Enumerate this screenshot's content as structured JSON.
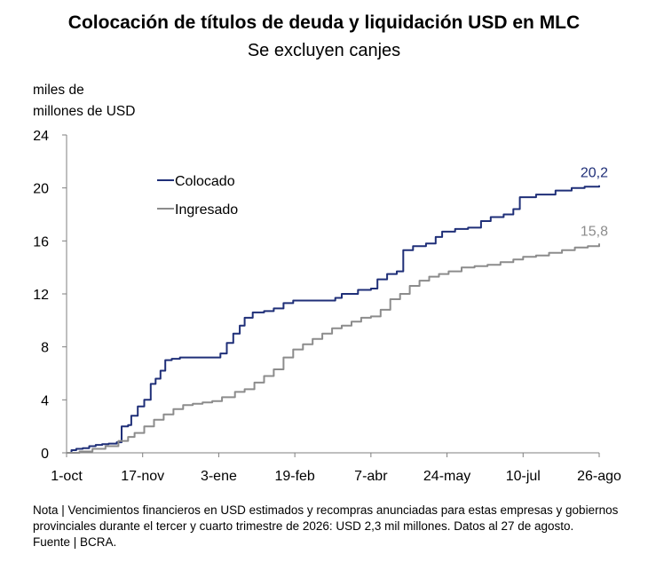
{
  "title": "Colocación de títulos de deuda y liquidación USD en MLC",
  "subtitle": "Se excluyen canjes",
  "y_unit_label_line1": "miles de",
  "y_unit_label_line2": "millones de USD",
  "note": "Nota | Vencimientos financieros en USD estimados y recompras anunciadas para estas empresas y gobiernos provinciales durante el tercer y cuarto trimestre de 2026: USD 2,3 mil millones. Datos al 27 de agosto.",
  "source": "Fuente | BCRA.",
  "colors": {
    "colocado": "#1f2f78",
    "ingresado": "#8c8c8c"
  },
  "chart_data": {
    "type": "line",
    "ylim": [
      0,
      24
    ],
    "yticks": [
      "0",
      "4",
      "8",
      "12",
      "16",
      "20",
      "24"
    ],
    "xticks": [
      "1-oct",
      "17-nov",
      "3-ene",
      "19-feb",
      "7-abr",
      "24-may",
      "10-jul",
      "26-ago"
    ],
    "x_range_days": [
      0,
      329
    ],
    "legend_position": "top-left",
    "grid": false,
    "series": [
      {
        "name": "Colocado",
        "end_label": "20,2",
        "points": [
          [
            0,
            0
          ],
          [
            3,
            0.2
          ],
          [
            6,
            0.3
          ],
          [
            10,
            0.35
          ],
          [
            14,
            0.5
          ],
          [
            18,
            0.6
          ],
          [
            22,
            0.65
          ],
          [
            26,
            0.7
          ],
          [
            31,
            0.8
          ],
          [
            34,
            2.0
          ],
          [
            38,
            2.1
          ],
          [
            40,
            2.8
          ],
          [
            44,
            3.5
          ],
          [
            48,
            4.0
          ],
          [
            52,
            5.2
          ],
          [
            55,
            5.6
          ],
          [
            58,
            6.2
          ],
          [
            61,
            7.0
          ],
          [
            65,
            7.1
          ],
          [
            70,
            7.2
          ],
          [
            80,
            7.2
          ],
          [
            90,
            7.2
          ],
          [
            95,
            7.5
          ],
          [
            99,
            8.3
          ],
          [
            103,
            9.0
          ],
          [
            107,
            9.6
          ],
          [
            110,
            10.2
          ],
          [
            115,
            10.6
          ],
          [
            122,
            10.7
          ],
          [
            128,
            10.9
          ],
          [
            134,
            11.3
          ],
          [
            140,
            11.5
          ],
          [
            150,
            11.5
          ],
          [
            160,
            11.5
          ],
          [
            166,
            11.7
          ],
          [
            170,
            12.0
          ],
          [
            180,
            12.3
          ],
          [
            188,
            12.4
          ],
          [
            192,
            13.1
          ],
          [
            198,
            13.5
          ],
          [
            204,
            13.7
          ],
          [
            208,
            15.3
          ],
          [
            214,
            15.6
          ],
          [
            222,
            15.8
          ],
          [
            228,
            16.3
          ],
          [
            232,
            16.7
          ],
          [
            240,
            16.9
          ],
          [
            248,
            17.0
          ],
          [
            256,
            17.5
          ],
          [
            262,
            17.8
          ],
          [
            270,
            18.0
          ],
          [
            276,
            18.4
          ],
          [
            280,
            19.3
          ],
          [
            290,
            19.5
          ],
          [
            302,
            19.8
          ],
          [
            312,
            20.0
          ],
          [
            320,
            20.1
          ],
          [
            329,
            20.2
          ]
        ]
      },
      {
        "name": "Ingresado",
        "end_label": "15,8",
        "points": [
          [
            0,
            0
          ],
          [
            8,
            0.1
          ],
          [
            16,
            0.3
          ],
          [
            24,
            0.5
          ],
          [
            32,
            0.9
          ],
          [
            38,
            1.2
          ],
          [
            42,
            1.5
          ],
          [
            48,
            2.0
          ],
          [
            54,
            2.5
          ],
          [
            60,
            2.9
          ],
          [
            66,
            3.3
          ],
          [
            72,
            3.6
          ],
          [
            78,
            3.7
          ],
          [
            84,
            3.8
          ],
          [
            90,
            3.9
          ],
          [
            96,
            4.2
          ],
          [
            104,
            4.6
          ],
          [
            110,
            4.8
          ],
          [
            116,
            5.3
          ],
          [
            122,
            5.8
          ],
          [
            128,
            6.3
          ],
          [
            134,
            7.2
          ],
          [
            140,
            7.8
          ],
          [
            146,
            8.2
          ],
          [
            152,
            8.6
          ],
          [
            158,
            9.0
          ],
          [
            164,
            9.4
          ],
          [
            170,
            9.6
          ],
          [
            176,
            9.9
          ],
          [
            182,
            10.2
          ],
          [
            188,
            10.3
          ],
          [
            194,
            10.8
          ],
          [
            200,
            11.6
          ],
          [
            206,
            12.0
          ],
          [
            212,
            12.6
          ],
          [
            218,
            13.0
          ],
          [
            224,
            13.3
          ],
          [
            230,
            13.5
          ],
          [
            236,
            13.7
          ],
          [
            244,
            14.0
          ],
          [
            252,
            14.1
          ],
          [
            260,
            14.2
          ],
          [
            268,
            14.4
          ],
          [
            276,
            14.6
          ],
          [
            282,
            14.8
          ],
          [
            290,
            14.9
          ],
          [
            298,
            15.1
          ],
          [
            306,
            15.3
          ],
          [
            314,
            15.5
          ],
          [
            322,
            15.6
          ],
          [
            329,
            15.8
          ]
        ]
      }
    ]
  }
}
